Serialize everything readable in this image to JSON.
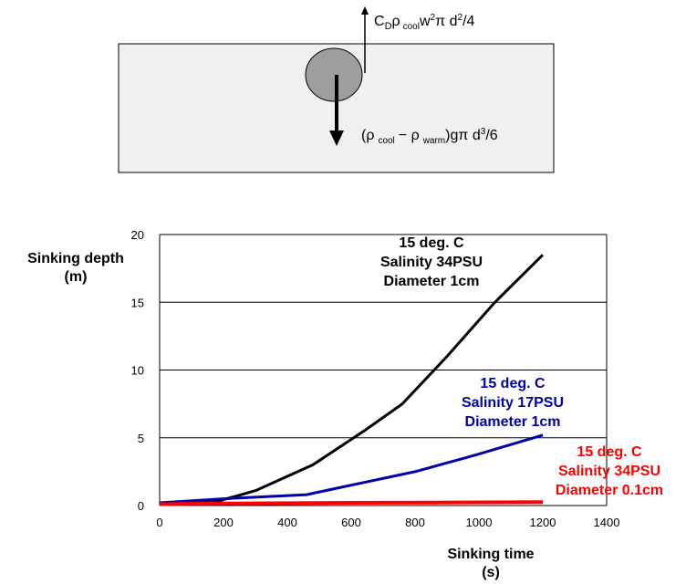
{
  "diagram": {
    "drag_force": {
      "base": "C",
      "sub": "D",
      "rho": "ρ",
      "sub2": "cool",
      "w": "w",
      "sup": "2",
      "rest": "π d",
      "sup2": "2",
      "tail": "/4"
    },
    "buoyancy_force": {
      "open": "(ρ",
      "sub1": "cool",
      "minus": "− ρ",
      "sub2": "warm",
      "close": ")gπ d",
      "sup": "3",
      "tail": "/6"
    },
    "colors": {
      "water": "#f0f0f0",
      "sphere": "#9e9e9e",
      "arrow": "#000000"
    }
  },
  "chart_data": {
    "type": "line",
    "xlabel_line1": "Sinking time",
    "xlabel_line2": "(s)",
    "ylabel_line1": "Sinking depth",
    "ylabel_line2": "(m)",
    "xlim": [
      0,
      1400
    ],
    "ylim": [
      0,
      20
    ],
    "xticks": [
      0,
      200,
      400,
      600,
      800,
      1000,
      1200,
      1400
    ],
    "yticks": [
      0,
      5,
      10,
      15,
      20
    ],
    "grid": "horizontal",
    "series": [
      {
        "color": "#000000",
        "label_lines": [
          "15 deg. C",
          "Salinity 34PSU",
          "Diameter 1cm"
        ],
        "points": [
          [
            0,
            0.2
          ],
          [
            180,
            0.3
          ],
          [
            300,
            1.1
          ],
          [
            480,
            3.0
          ],
          [
            640,
            5.5
          ],
          [
            760,
            7.5
          ],
          [
            900,
            11.0
          ],
          [
            1050,
            15.0
          ],
          [
            1200,
            18.5
          ]
        ]
      },
      {
        "color": "#0000aa",
        "label_lines": [
          "15 deg. C",
          "Salinity 17PSU",
          "Diameter 1cm"
        ],
        "points": [
          [
            0,
            0.2
          ],
          [
            200,
            0.5
          ],
          [
            460,
            0.8
          ],
          [
            600,
            1.5
          ],
          [
            800,
            2.5
          ],
          [
            1000,
            3.8
          ],
          [
            1200,
            5.2
          ]
        ]
      },
      {
        "color": "#ff0000",
        "label_lines": [
          "15 deg. C",
          "Salinity 34PSU",
          "Diameter 0.1cm"
        ],
        "points": [
          [
            0,
            0.1
          ],
          [
            200,
            0.15
          ],
          [
            600,
            0.2
          ],
          [
            1200,
            0.25
          ]
        ]
      }
    ]
  }
}
